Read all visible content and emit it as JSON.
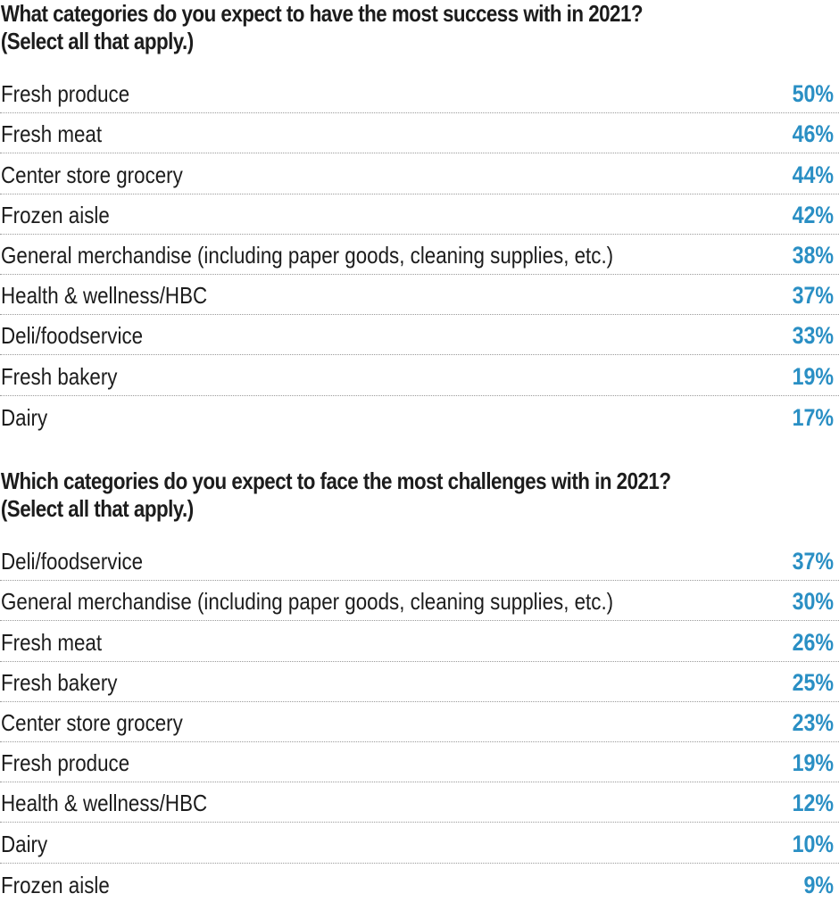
{
  "accent_color": "#2a8fc4",
  "chart_data": [
    {
      "type": "table",
      "title": "What categories do you expect to have the most success with in 2021?",
      "subtitle": "(Select all that apply.)",
      "categories": [
        "Fresh produce",
        "Fresh meat",
        "Center store grocery",
        "Frozen aisle",
        "General merchandise (including paper goods, cleaning supplies, etc.)",
        "Health & wellness/HBC",
        "Deli/foodservice",
        "Fresh bakery",
        "Dairy"
      ],
      "values": [
        50,
        46,
        44,
        42,
        38,
        37,
        33,
        19,
        17
      ],
      "value_labels": [
        "50%",
        "46%",
        "44%",
        "42%",
        "38%",
        "37%",
        "33%",
        "19%",
        "17%"
      ],
      "unit": "%"
    },
    {
      "type": "table",
      "title": "Which categories do you expect to face the most challenges with in 2021?",
      "subtitle": "(Select all that apply.)",
      "categories": [
        "Deli/foodservice",
        "General merchandise (including paper goods, cleaning supplies, etc.)",
        "Fresh meat",
        "Fresh bakery",
        "Center store grocery",
        "Fresh produce",
        "Health & wellness/HBC",
        "Dairy",
        "Frozen aisle"
      ],
      "values": [
        37,
        30,
        26,
        25,
        23,
        19,
        12,
        10,
        9
      ],
      "value_labels": [
        "37%",
        "30%",
        "26%",
        "25%",
        "23%",
        "19%",
        "12%",
        "10%",
        "9%"
      ],
      "unit": "%"
    }
  ]
}
